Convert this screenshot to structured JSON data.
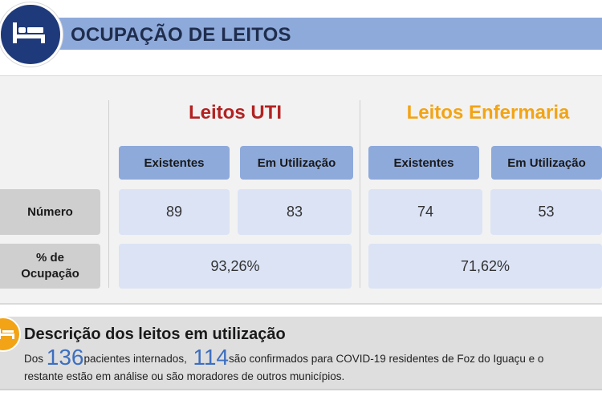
{
  "header": {
    "title": "OCUPAÇÃO DE LEITOS",
    "icon": "bed-icon"
  },
  "groups": {
    "uti": {
      "title": "Leitos UTI",
      "color": "#b22222"
    },
    "enfermaria": {
      "title": "Leitos Enfermaria",
      "color": "#f2a416"
    }
  },
  "columns": {
    "existentes": "Existentes",
    "em_utilizacao": "Em Utilização"
  },
  "rows": {
    "numero": "Número",
    "ocupacao_line1": "% de",
    "ocupacao_line2": "Ocupação"
  },
  "values": {
    "uti_existentes": "89",
    "uti_em_utilizacao": "83",
    "uti_ocupacao": "93,26%",
    "enf_existentes": "74",
    "enf_em_utilizacao": "53",
    "enf_ocupacao": "71,62%"
  },
  "description": {
    "title": "Descrição dos leitos em utilização",
    "prefix": "Dos ",
    "patients": "136",
    "mid": "pacientes internados,  ",
    "confirmed": "114",
    "suffix": "são confirmados para COVID-19 residentes de Foz do Iguaçu e o",
    "line2": "restante estão em análise ou são moradores de outros municípios.",
    "icon": "bed-icon"
  }
}
